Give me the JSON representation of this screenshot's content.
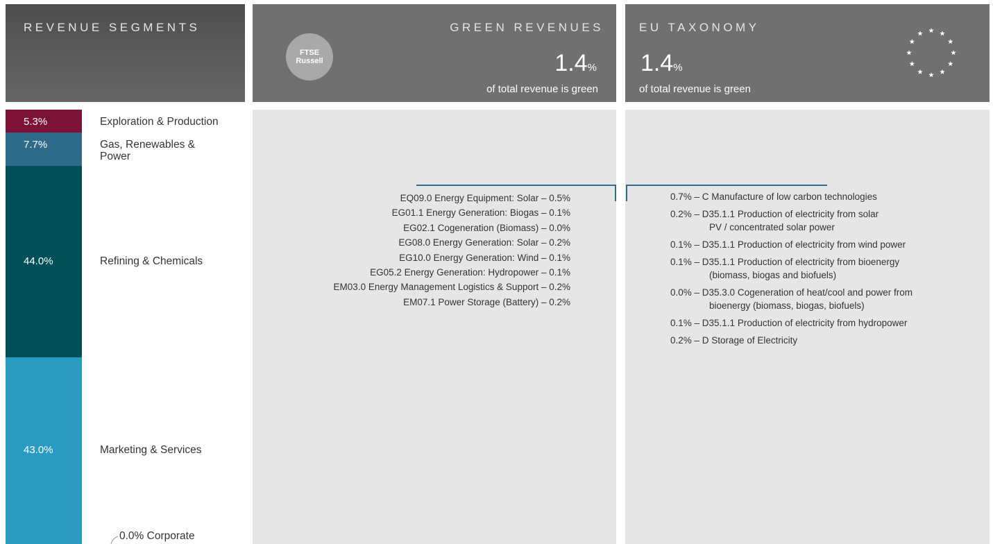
{
  "chart_data": {
    "type": "stacked_bar",
    "title": "REVENUE SEGMENTS",
    "categories": [
      "Exploration & Production",
      "Gas, Renewables & Power",
      "Refining & Chemicals",
      "Marketing & Services",
      "Corporate"
    ],
    "values": [
      5.3,
      7.7,
      44.0,
      43.0,
      0.0
    ],
    "value_labels": [
      "5.3%",
      "7.7%",
      "44.0%",
      "43.0%",
      "0.0%"
    ],
    "colors": [
      "#7d1238",
      "#2e6b8a",
      "#00505a",
      "#2a9cc4",
      "#2a9cc4"
    ]
  },
  "green_revenues": {
    "title": "GREEN REVENUES",
    "logo_lines": [
      "FTSE",
      "Russell"
    ],
    "value": "1.4",
    "unit": "%",
    "caption": "of total revenue is green",
    "items": [
      "EQ09.0 Energy Equipment: Solar – 0.5%",
      "EG01.1 Energy Generation: Biogas – 0.1%",
      "EG02.1 Cogeneration (Biomass) – 0.0%",
      "EG08.0 Energy Generation: Solar – 0.2%",
      "EG10.0 Energy Generation: Wind – 0.1%",
      "EG05.2 Energy Generation: Hydropower – 0.1%",
      "EM03.0 Energy Management Logistics & Support – 0.2%",
      "EM07.1 Power Storage (Battery) – 0.2%"
    ]
  },
  "eu_taxonomy": {
    "title": "EU TAXONOMY",
    "value": "1.4",
    "unit": "%",
    "caption": "of total revenue is green",
    "items": [
      {
        "lines": [
          "0.7% – C Manufacture of low carbon technologies"
        ]
      },
      {
        "lines": [
          "0.2% – D35.1.1 Production of electricity from solar",
          "PV / concentrated solar power"
        ]
      },
      {
        "lines": [
          "0.1% – D35.1.1 Production of electricity from wind power"
        ]
      },
      {
        "lines": [
          "0.1% – D35.1.1 Production of electricity from bioenergy",
          "(biomass, biogas and biofuels)"
        ]
      },
      {
        "lines": [
          "0.0% – D35.3.0 Cogeneration of heat/cool and power from",
          "bioenergy (biomass, biogas, biofuels)"
        ]
      },
      {
        "lines": [
          "0.1% – D35.1.1 Production of electricity from hydropower"
        ]
      },
      {
        "lines": [
          "0.2% – D Storage of Electricity"
        ]
      }
    ]
  }
}
